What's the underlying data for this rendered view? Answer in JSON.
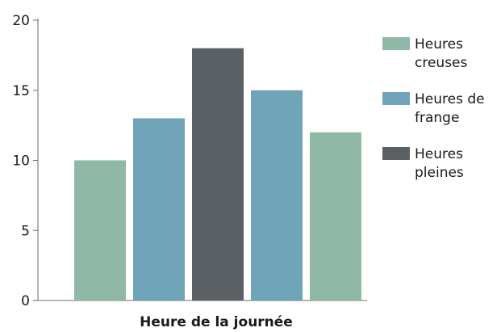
{
  "chart_data": {
    "type": "bar",
    "title": "",
    "xlabel": "Heure de la journée",
    "ylabel": "",
    "ylim": [
      0,
      20
    ],
    "yticks": [
      0,
      5,
      10,
      15,
      20
    ],
    "categories": [
      "",
      "",
      "",
      "",
      ""
    ],
    "values": [
      10,
      13,
      18,
      15,
      12
    ],
    "bar_series": [
      "Heures creuses",
      "Heures de frange",
      "Heures pleines",
      "Heures de frange",
      "Heures creuses"
    ],
    "legend_position": "right",
    "legend": [
      {
        "name": "Heures creuses",
        "lines": [
          "Heures",
          "creuses"
        ],
        "color": "#8fb9a6"
      },
      {
        "name": "Heures de frange",
        "lines": [
          "Heures de",
          "frange"
        ],
        "color": "#6fa3b7"
      },
      {
        "name": "Heures pleines",
        "lines": [
          "Heures",
          "pleines"
        ],
        "color": "#5b6064"
      }
    ],
    "grid": false
  }
}
